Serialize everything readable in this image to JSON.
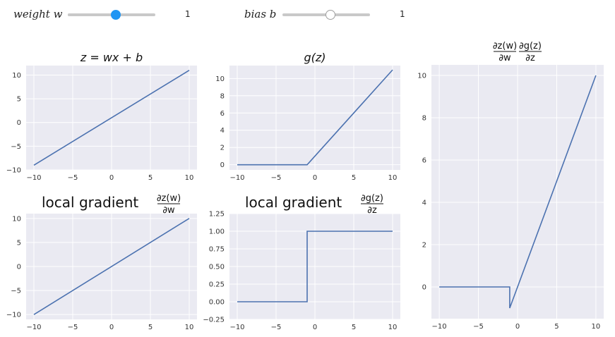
{
  "controls": {
    "weight": {
      "label": "weight w",
      "value": "1",
      "level": 0.55,
      "accent": "#2196f3",
      "style": "filled"
    },
    "bias": {
      "label": "bias b",
      "value": "1",
      "level": 0.55,
      "accent": "#ffffff",
      "style": "hollow"
    }
  },
  "colors": {
    "line": "#4c72b0",
    "panel": "#eaeaf2",
    "grid": "#ffffff"
  },
  "chart_data": [
    {
      "id": "z",
      "type": "line",
      "title": "z = wx + b",
      "x": [
        -10,
        10
      ],
      "y": [
        -9,
        11
      ],
      "xlim": [
        -11,
        11
      ],
      "ylim": [
        -10,
        12
      ],
      "xticks": [
        -10,
        -5,
        0,
        5,
        10
      ],
      "xticklabels": [
        "−10",
        "−5",
        "0",
        "5",
        "10"
      ],
      "yticks": [
        -10,
        -5,
        0,
        5,
        10
      ],
      "yticklabels": [
        "−10",
        "−5",
        "0",
        "5",
        "10"
      ],
      "grid": true
    },
    {
      "id": "g",
      "type": "line",
      "title": "g(z)",
      "x": [
        -10,
        -1,
        10
      ],
      "y": [
        0,
        0,
        11
      ],
      "xlim": [
        -11,
        11
      ],
      "ylim": [
        -0.6,
        11.5
      ],
      "xticks": [
        -10,
        -5,
        0,
        5,
        10
      ],
      "xticklabels": [
        "−10",
        "−5",
        "0",
        "5",
        "10"
      ],
      "yticks": [
        0,
        2,
        4,
        6,
        8,
        10
      ],
      "yticklabels": [
        "0",
        "2",
        "4",
        "6",
        "8",
        "10"
      ],
      "grid": true
    },
    {
      "id": "prod",
      "type": "line",
      "title_num": [
        "∂z(w)",
        "∂g(z)"
      ],
      "title_den": [
        "∂w",
        "∂z"
      ],
      "x": [
        -10,
        -1,
        -1,
        10
      ],
      "y": [
        0,
        0,
        -1,
        10
      ],
      "xlim": [
        -11,
        11
      ],
      "ylim": [
        -1.5,
        10.5
      ],
      "xticks": [
        -10,
        -5,
        0,
        5,
        10
      ],
      "xticklabels": [
        "−10",
        "−5",
        "0",
        "5",
        "10"
      ],
      "yticks": [
        0,
        2,
        4,
        6,
        8,
        10
      ],
      "yticklabels": [
        "0",
        "2",
        "4",
        "6",
        "8",
        "10"
      ],
      "grid": true
    },
    {
      "id": "dzdw",
      "type": "line",
      "title_prefix": "local gradient",
      "title_num": [
        "∂z(w)"
      ],
      "title_den": [
        "∂w"
      ],
      "x": [
        -10,
        10
      ],
      "y": [
        -10,
        10
      ],
      "xlim": [
        -11,
        11
      ],
      "ylim": [
        -11,
        11
      ],
      "xticks": [
        -10,
        -5,
        0,
        5,
        10
      ],
      "xticklabels": [
        "−10",
        "−5",
        "0",
        "5",
        "10"
      ],
      "yticks": [
        -10,
        -5,
        0,
        5,
        10
      ],
      "yticklabels": [
        "−10",
        "−5",
        "0",
        "5",
        "10"
      ],
      "grid": true
    },
    {
      "id": "dgdz",
      "type": "line",
      "title_prefix": "local gradient",
      "title_num": [
        "∂g(z)"
      ],
      "title_den": [
        "∂z"
      ],
      "x": [
        -10,
        -1,
        -1,
        10
      ],
      "y": [
        0,
        0,
        1,
        1
      ],
      "xlim": [
        -11,
        11
      ],
      "ylim": [
        -0.25,
        1.25
      ],
      "xticks": [
        -10,
        -5,
        0,
        5,
        10
      ],
      "xticklabels": [
        "−10",
        "−5",
        "0",
        "5",
        "10"
      ],
      "yticks": [
        -0.25,
        0,
        0.25,
        0.5,
        0.75,
        1.0,
        1.25
      ],
      "yticklabels": [
        "−0.25",
        "0.00",
        "0.25",
        "0.50",
        "0.75",
        "1.00",
        "1.25"
      ],
      "grid": true
    }
  ]
}
